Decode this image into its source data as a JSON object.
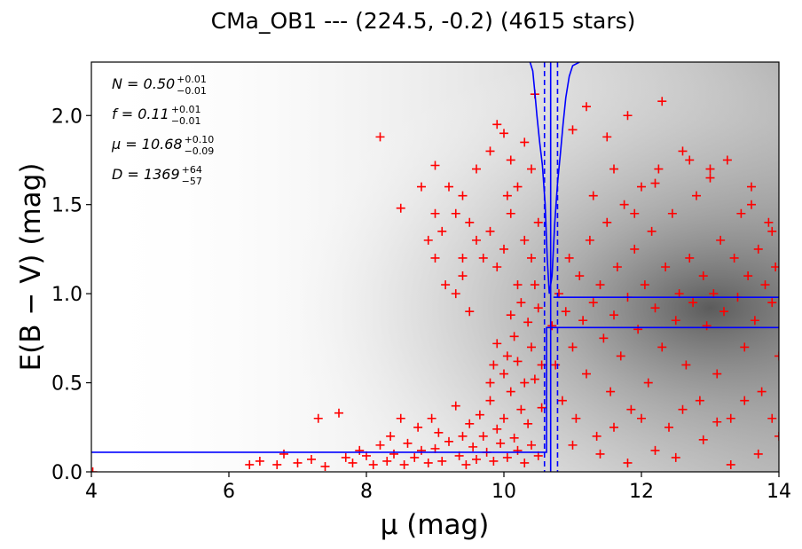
{
  "chart_data": {
    "type": "scatter",
    "title": "CMa_OB1 --- (224.5, -0.2) (4615 stars)",
    "xlabel": "μ (mag)",
    "ylabel": "E(B − V) (mag)",
    "xlim": [
      4,
      14
    ],
    "ylim": [
      0,
      2.3
    ],
    "x_ticks": [
      "4",
      "6",
      "8",
      "10",
      "12",
      "14"
    ],
    "y_ticks": [
      "0.0",
      "0.5",
      "1.0",
      "1.5",
      "2.0"
    ],
    "grid": false,
    "background": "grayscale probability density of the extinction model",
    "stats": [
      {
        "label": "N = 0.50",
        "sup": "+0.01",
        "sub": "−0.01"
      },
      {
        "label": "f = 0.11",
        "sup": "+0.01",
        "sub": "−0.01"
      },
      {
        "label": "μ = 10.68",
        "sup": "+0.10",
        "sub": "−0.09"
      },
      {
        "label": "D = 1369",
        "sup": "+64",
        "sub": "−57"
      }
    ],
    "stats_placement": "top-left",
    "series": [
      {
        "kind": "stars",
        "marker": "plus",
        "color": "#ff0000",
        "points": [
          [
            4.02,
            0.0
          ],
          [
            6.3,
            0.04
          ],
          [
            6.45,
            0.06
          ],
          [
            6.7,
            0.04
          ],
          [
            6.8,
            0.1
          ],
          [
            7.0,
            0.05
          ],
          [
            7.2,
            0.07
          ],
          [
            7.3,
            0.3
          ],
          [
            7.4,
            0.03
          ],
          [
            7.6,
            0.33
          ],
          [
            7.7,
            0.08
          ],
          [
            7.8,
            0.05
          ],
          [
            7.9,
            0.12
          ],
          [
            8.0,
            0.09
          ],
          [
            8.1,
            0.04
          ],
          [
            8.2,
            0.15
          ],
          [
            8.3,
            0.06
          ],
          [
            8.35,
            0.2
          ],
          [
            8.4,
            0.1
          ],
          [
            8.5,
            0.3
          ],
          [
            8.55,
            0.04
          ],
          [
            8.6,
            0.16
          ],
          [
            8.7,
            0.08
          ],
          [
            8.75,
            0.25
          ],
          [
            8.8,
            0.12
          ],
          [
            8.9,
            0.05
          ],
          [
            8.95,
            0.3
          ],
          [
            9.0,
            0.13
          ],
          [
            9.05,
            0.22
          ],
          [
            9.1,
            0.06
          ],
          [
            9.2,
            0.17
          ],
          [
            9.3,
            0.37
          ],
          [
            9.35,
            0.09
          ],
          [
            9.4,
            0.2
          ],
          [
            9.45,
            0.04
          ],
          [
            9.5,
            0.27
          ],
          [
            9.55,
            0.14
          ],
          [
            9.6,
            0.07
          ],
          [
            9.65,
            0.32
          ],
          [
            9.7,
            0.2
          ],
          [
            9.75,
            0.11
          ],
          [
            9.8,
            0.4
          ],
          [
            9.85,
            0.06
          ],
          [
            9.9,
            0.24
          ],
          [
            9.95,
            0.16
          ],
          [
            10.0,
            0.3
          ],
          [
            10.05,
            0.08
          ],
          [
            10.1,
            0.45
          ],
          [
            10.15,
            0.19
          ],
          [
            10.2,
            0.12
          ],
          [
            10.25,
            0.35
          ],
          [
            10.3,
            0.05
          ],
          [
            10.35,
            0.27
          ],
          [
            10.4,
            0.15
          ],
          [
            10.45,
            0.52
          ],
          [
            10.5,
            0.09
          ],
          [
            10.55,
            0.36
          ],
          [
            9.8,
            0.5
          ],
          [
            9.85,
            0.6
          ],
          [
            9.9,
            0.72
          ],
          [
            10.0,
            0.55
          ],
          [
            10.05,
            0.65
          ],
          [
            10.1,
            0.88
          ],
          [
            10.15,
            0.76
          ],
          [
            10.2,
            0.62
          ],
          [
            10.25,
            0.95
          ],
          [
            10.3,
            0.5
          ],
          [
            10.35,
            0.84
          ],
          [
            10.4,
            0.7
          ],
          [
            10.45,
            1.05
          ],
          [
            10.5,
            0.92
          ],
          [
            10.55,
            0.6
          ],
          [
            9.3,
            1.0
          ],
          [
            9.4,
            1.1
          ],
          [
            9.5,
            0.9
          ],
          [
            9.6,
            1.3
          ],
          [
            9.7,
            1.2
          ],
          [
            9.8,
            1.35
          ],
          [
            9.9,
            1.15
          ],
          [
            10.0,
            1.25
          ],
          [
            10.1,
            1.45
          ],
          [
            10.2,
            1.05
          ],
          [
            10.3,
            1.3
          ],
          [
            10.4,
            1.2
          ],
          [
            10.5,
            1.4
          ],
          [
            9.0,
            1.72
          ],
          [
            9.2,
            1.6
          ],
          [
            9.4,
            1.55
          ],
          [
            9.6,
            1.7
          ],
          [
            9.8,
            1.8
          ],
          [
            9.5,
            1.4
          ],
          [
            9.3,
            1.45
          ],
          [
            9.1,
            1.35
          ],
          [
            8.9,
            1.3
          ],
          [
            9.0,
            1.45
          ],
          [
            9.4,
            1.2
          ],
          [
            8.2,
            1.88
          ],
          [
            8.5,
            1.48
          ],
          [
            8.8,
            1.6
          ],
          [
            9.0,
            1.2
          ],
          [
            9.15,
            1.05
          ],
          [
            10.0,
            1.9
          ],
          [
            10.2,
            1.6
          ],
          [
            10.4,
            1.7
          ],
          [
            10.45,
            2.12
          ],
          [
            10.3,
            1.85
          ],
          [
            10.1,
            1.75
          ],
          [
            10.05,
            1.55
          ],
          [
            9.9,
            1.95
          ],
          [
            10.7,
            0.82
          ],
          [
            10.75,
            0.6
          ],
          [
            10.8,
            1.0
          ],
          [
            10.85,
            0.4
          ],
          [
            10.9,
            0.9
          ],
          [
            10.95,
            1.2
          ],
          [
            11.0,
            0.7
          ],
          [
            11.05,
            0.3
          ],
          [
            11.1,
            1.1
          ],
          [
            11.15,
            0.85
          ],
          [
            11.2,
            0.55
          ],
          [
            11.25,
            1.3
          ],
          [
            11.3,
            0.95
          ],
          [
            11.35,
            0.2
          ],
          [
            11.4,
            1.05
          ],
          [
            11.45,
            0.75
          ],
          [
            11.5,
            1.4
          ],
          [
            11.55,
            0.45
          ],
          [
            11.6,
            0.88
          ],
          [
            11.65,
            1.15
          ],
          [
            11.7,
            0.65
          ],
          [
            11.75,
            1.5
          ],
          [
            11.8,
            0.98
          ],
          [
            11.85,
            0.35
          ],
          [
            11.9,
            1.25
          ],
          [
            11.95,
            0.8
          ],
          [
            12.0,
            1.6
          ],
          [
            12.05,
            1.05
          ],
          [
            12.1,
            0.5
          ],
          [
            12.15,
            1.35
          ],
          [
            12.2,
            0.92
          ],
          [
            12.25,
            1.7
          ],
          [
            12.3,
            0.7
          ],
          [
            12.35,
            1.15
          ],
          [
            12.4,
            0.25
          ],
          [
            12.45,
            1.45
          ],
          [
            12.5,
            0.85
          ],
          [
            12.55,
            1.0
          ],
          [
            12.6,
            1.8
          ],
          [
            12.65,
            0.6
          ],
          [
            12.7,
            1.2
          ],
          [
            12.75,
            0.95
          ],
          [
            12.8,
            1.55
          ],
          [
            12.85,
            0.4
          ],
          [
            12.9,
            1.1
          ],
          [
            12.95,
            0.82
          ],
          [
            13.0,
            1.65
          ],
          [
            13.05,
            1.0
          ],
          [
            13.1,
            0.55
          ],
          [
            13.15,
            1.3
          ],
          [
            13.2,
            0.9
          ],
          [
            13.25,
            1.75
          ],
          [
            13.3,
            0.3
          ],
          [
            13.35,
            1.2
          ],
          [
            13.4,
            0.98
          ],
          [
            13.45,
            1.45
          ],
          [
            13.5,
            0.7
          ],
          [
            13.55,
            1.1
          ],
          [
            13.6,
            1.6
          ],
          [
            13.65,
            0.85
          ],
          [
            13.7,
            1.25
          ],
          [
            13.75,
            0.45
          ],
          [
            13.8,
            1.05
          ],
          [
            13.85,
            1.4
          ],
          [
            13.9,
            0.95
          ],
          [
            13.95,
            1.15
          ],
          [
            14.0,
            0.65
          ],
          [
            11.2,
            2.05
          ],
          [
            11.0,
            1.92
          ],
          [
            11.5,
            1.88
          ],
          [
            11.8,
            2.0
          ],
          [
            12.3,
            2.08
          ],
          [
            11.6,
            1.7
          ],
          [
            12.7,
            1.75
          ],
          [
            13.0,
            1.7
          ],
          [
            13.6,
            1.5
          ],
          [
            13.9,
            1.35
          ],
          [
            12.2,
            1.62
          ],
          [
            11.3,
            1.55
          ],
          [
            11.9,
            1.45
          ],
          [
            11.0,
            0.15
          ],
          [
            11.4,
            0.1
          ],
          [
            11.8,
            0.05
          ],
          [
            12.2,
            0.12
          ],
          [
            12.5,
            0.08
          ],
          [
            12.9,
            0.18
          ],
          [
            13.3,
            0.04
          ],
          [
            13.7,
            0.1
          ],
          [
            14.0,
            0.2
          ],
          [
            11.6,
            0.25
          ],
          [
            12.0,
            0.3
          ],
          [
            12.6,
            0.35
          ],
          [
            13.1,
            0.28
          ],
          [
            13.5,
            0.4
          ],
          [
            13.9,
            0.3
          ]
        ]
      },
      {
        "kind": "best-fit extinction profile",
        "color": "#0000ff",
        "line": "solid",
        "points": [
          [
            4.0,
            0.11
          ],
          [
            10.6,
            0.11
          ],
          [
            10.62,
            0.11
          ],
          [
            10.62,
            0.81
          ],
          [
            14.0,
            0.81
          ]
        ]
      },
      {
        "kind": "second extinction level",
        "color": "#0000ff",
        "line": "solid",
        "points": [
          [
            10.72,
            0.98
          ],
          [
            14.0,
            0.98
          ]
        ]
      },
      {
        "kind": "distance probability curve",
        "color": "#0000ff",
        "line": "solid",
        "points": [
          [
            10.38,
            2.3
          ],
          [
            10.42,
            2.25
          ],
          [
            10.45,
            2.13
          ],
          [
            10.48,
            2.0
          ],
          [
            10.52,
            1.85
          ],
          [
            10.56,
            1.72
          ],
          [
            10.6,
            1.5
          ],
          [
            10.63,
            1.2
          ],
          [
            10.66,
            1.0
          ],
          [
            10.7,
            1.1
          ],
          [
            10.74,
            1.4
          ],
          [
            10.78,
            1.62
          ],
          [
            10.82,
            1.78
          ],
          [
            10.86,
            1.95
          ],
          [
            10.9,
            2.1
          ],
          [
            10.95,
            2.22
          ],
          [
            11.0,
            2.28
          ],
          [
            11.1,
            2.3
          ]
        ]
      },
      {
        "kind": "distance bounds",
        "color": "#0000ff",
        "line": "dashed",
        "x": [
          10.59,
          10.78
        ]
      },
      {
        "kind": "distance estimate",
        "color": "#0000ff",
        "line": "solid",
        "x": [
          10.68
        ]
      }
    ]
  }
}
